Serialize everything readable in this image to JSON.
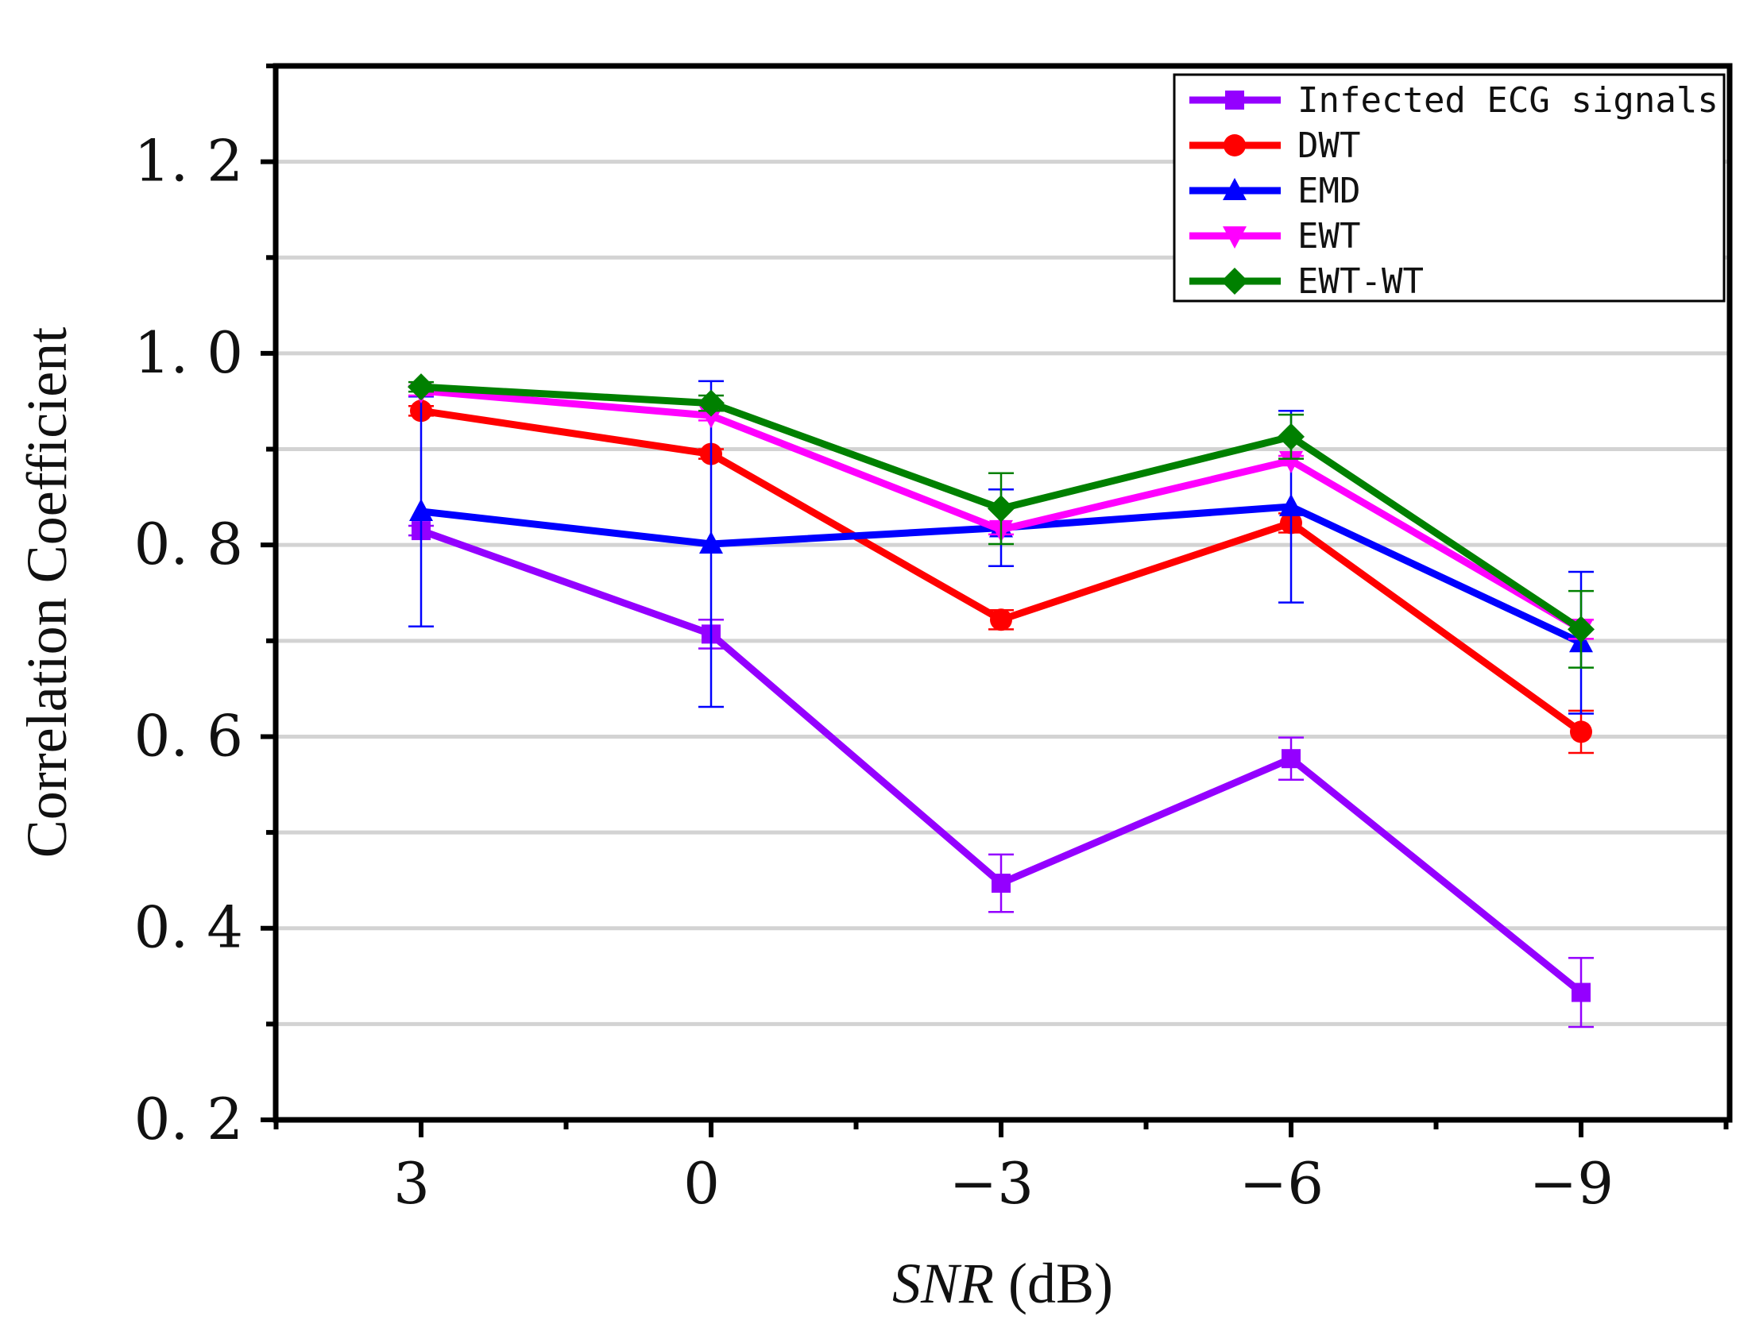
{
  "chart_data": {
    "type": "line",
    "title": "",
    "xlabel_italic": "SNR",
    "xlabel_unit": " (dB)",
    "ylabel": "Correlation Coefficient",
    "ylim": [
      0.2,
      1.3
    ],
    "y_ticks": [
      0.2,
      0.4,
      0.6,
      0.8,
      1.0,
      1.2
    ],
    "y_tick_labels": [
      "0. 2",
      "0. 4",
      "0. 6",
      "0. 8",
      "1. 0",
      "1. 2"
    ],
    "y_gridlines": [
      0.3,
      0.4,
      0.5,
      0.6,
      0.7,
      0.8,
      0.9,
      1.0,
      1.1,
      1.2
    ],
    "grid": "horizontal",
    "categories": [
      "3",
      "0",
      "−3",
      "−6",
      "−9"
    ],
    "legend_position": "top-right",
    "series": [
      {
        "name": "Infected ECG signals",
        "color": "#9400FF",
        "marker": "square",
        "values": [
          0.815,
          0.707,
          0.447,
          0.577,
          0.333
        ],
        "errors": [
          0.005,
          0.015,
          0.03,
          0.022,
          0.036
        ]
      },
      {
        "name": "DWT",
        "color": "#FF0000",
        "marker": "circle",
        "values": [
          0.94,
          0.895,
          0.722,
          0.823,
          0.605
        ],
        "errors": [
          0.005,
          0.005,
          0.01,
          0.01,
          0.022
        ]
      },
      {
        "name": "EMD",
        "color": "#0000FF",
        "marker": "triangle-up",
        "values": [
          0.835,
          0.801,
          0.818,
          0.84,
          0.698
        ],
        "errors": [
          0.12,
          0.17,
          0.04,
          0.1,
          0.074
        ]
      },
      {
        "name": "EWT",
        "color": "#FF00FF",
        "marker": "triangle-down",
        "values": [
          0.961,
          0.935,
          0.816,
          0.888,
          0.712
        ],
        "errors": [
          0.005,
          0.005,
          0.005,
          0.005,
          0.01
        ]
      },
      {
        "name": "EWT-WT",
        "color": "#008000",
        "marker": "diamond",
        "values": [
          0.965,
          0.948,
          0.838,
          0.913,
          0.712
        ],
        "errors": [
          0.005,
          0.008,
          0.037,
          0.023,
          0.04
        ]
      }
    ]
  }
}
